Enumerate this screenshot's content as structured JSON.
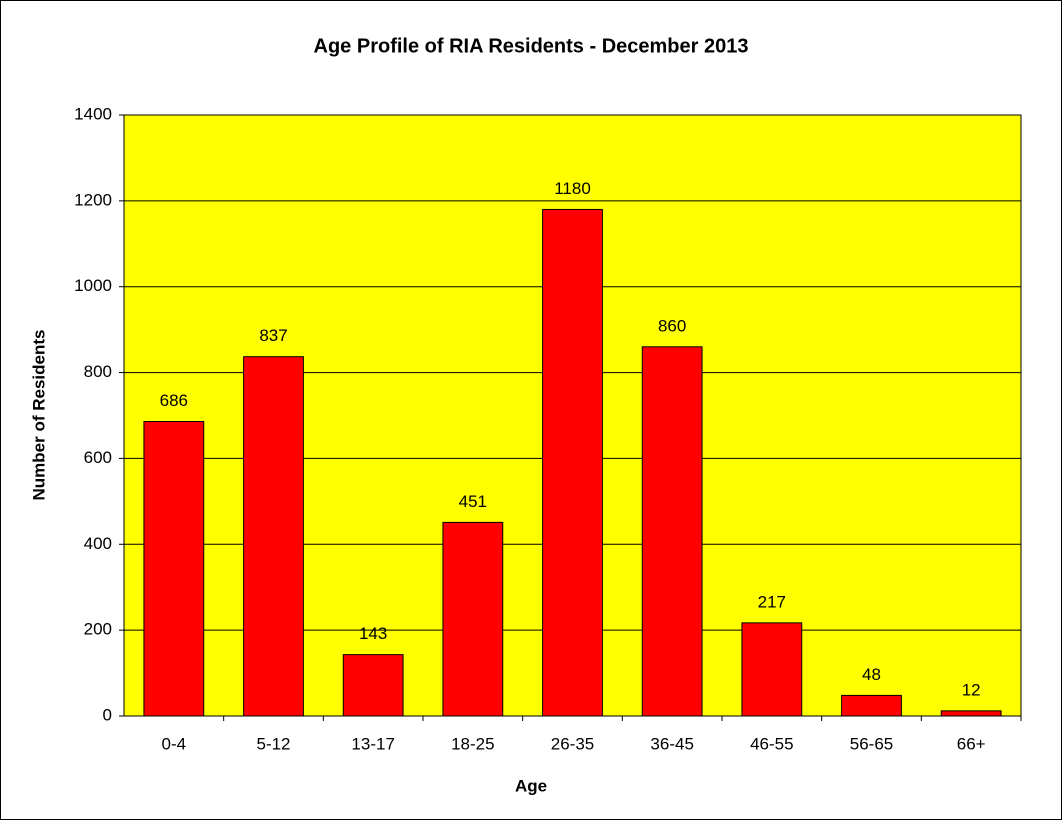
{
  "chart_data": {
    "type": "bar",
    "title": "Age Profile of RIA Residents - December 2013",
    "x_label": "Age",
    "y_label": "Number of Residents",
    "categories": [
      "0-4",
      "5-12",
      "13-17",
      "18-25",
      "26-35",
      "36-45",
      "46-55",
      "56-65",
      "66+"
    ],
    "values": [
      686,
      837,
      143,
      451,
      1180,
      860,
      217,
      48,
      12
    ],
    "color": "#ff0000",
    "plot_background": "#ffff00",
    "ylim": [
      0,
      1400
    ],
    "yticks": [
      0,
      200,
      400,
      600,
      800,
      1000,
      1200,
      1400
    ],
    "grid": true
  }
}
